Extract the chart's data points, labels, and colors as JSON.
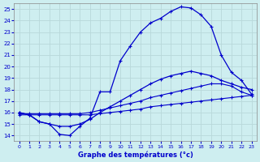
{
  "xlabel": "Graphe des températures (°c)",
  "background_color": "#ceeef0",
  "line_color": "#0000cc",
  "grid_color": "#b8d8da",
  "xlim": [
    -0.5,
    23.5
  ],
  "ylim": [
    13.5,
    25.5
  ],
  "xticks": [
    0,
    1,
    2,
    3,
    4,
    5,
    6,
    7,
    8,
    9,
    10,
    11,
    12,
    13,
    14,
    15,
    16,
    17,
    18,
    19,
    20,
    21,
    22,
    23
  ],
  "yticks": [
    14,
    15,
    16,
    17,
    18,
    19,
    20,
    21,
    22,
    23,
    24,
    25
  ],
  "line1_x": [
    0,
    1,
    2,
    3,
    4,
    5,
    6,
    7,
    8,
    9,
    10,
    11,
    12,
    13,
    14,
    15,
    16,
    17,
    18,
    19,
    20,
    21,
    22,
    23
  ],
  "line1_y": [
    15.8,
    15.8,
    15.8,
    15.8,
    15.8,
    15.8,
    15.8,
    15.8,
    15.9,
    16.0,
    16.1,
    16.2,
    16.3,
    16.5,
    16.6,
    16.7,
    16.8,
    16.9,
    17.0,
    17.1,
    17.2,
    17.3,
    17.4,
    17.5
  ],
  "line2_x": [
    0,
    1,
    2,
    3,
    4,
    5,
    6,
    7,
    8,
    9,
    10,
    11,
    12,
    13,
    14,
    15,
    16,
    17,
    18,
    19,
    20,
    21,
    22,
    23
  ],
  "line2_y": [
    15.9,
    15.9,
    15.9,
    15.9,
    15.9,
    15.9,
    15.9,
    16.0,
    16.2,
    16.4,
    16.6,
    16.8,
    17.0,
    17.3,
    17.5,
    17.7,
    17.9,
    18.1,
    18.3,
    18.5,
    18.5,
    18.3,
    17.8,
    17.5
  ],
  "line3_x": [
    0,
    1,
    2,
    3,
    4,
    5,
    6,
    7,
    8,
    9,
    10,
    11,
    12,
    13,
    14,
    15,
    16,
    17,
    18,
    19,
    20,
    21,
    22,
    23
  ],
  "line3_y": [
    16.0,
    15.8,
    15.2,
    15.0,
    14.8,
    14.8,
    15.0,
    15.4,
    16.0,
    16.5,
    17.0,
    17.5,
    18.0,
    18.5,
    18.9,
    19.2,
    19.4,
    19.6,
    19.4,
    19.2,
    18.8,
    18.5,
    18.2,
    18.0
  ],
  "line4_x": [
    0,
    1,
    2,
    3,
    4,
    5,
    6,
    7,
    8,
    9,
    10,
    11,
    12,
    13,
    14,
    15,
    16,
    17,
    18,
    19,
    20,
    21,
    22,
    23
  ],
  "line4_y": [
    16.0,
    15.8,
    15.2,
    15.0,
    14.1,
    14.0,
    14.8,
    15.5,
    17.8,
    17.8,
    20.5,
    21.8,
    23.0,
    23.8,
    24.2,
    24.8,
    25.2,
    25.1,
    24.5,
    23.5,
    21.0,
    19.5,
    18.8,
    17.6
  ]
}
